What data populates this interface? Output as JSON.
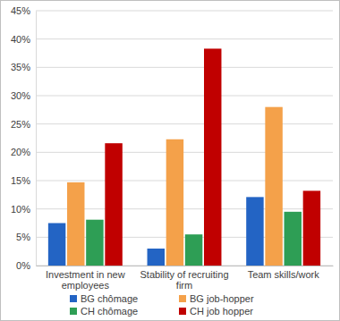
{
  "chart_data": {
    "type": "bar",
    "categories": [
      "Investment in new employees",
      "Stability of recruiting firm",
      "Team skills/work"
    ],
    "series": [
      {
        "name": "BG chômage",
        "color": "#2364C4",
        "values": [
          7.5,
          3.0,
          12.1
        ]
      },
      {
        "name": "BG job-hopper",
        "color": "#F4A14A",
        "values": [
          14.7,
          22.3,
          28.0
        ]
      },
      {
        "name": "CH chômage",
        "color": "#2E9E55",
        "values": [
          8.1,
          5.5,
          9.5
        ]
      },
      {
        "name": "CH job hopper",
        "color": "#C00000",
        "values": [
          21.6,
          38.3,
          13.2
        ]
      }
    ],
    "ylim": [
      0,
      45
    ],
    "yticks": [
      {
        "value": 0,
        "label": "0%"
      },
      {
        "value": 5,
        "label": "5%"
      },
      {
        "value": 10,
        "label": "10%"
      },
      {
        "value": 15,
        "label": "15%"
      },
      {
        "value": 20,
        "label": "20%"
      },
      {
        "value": 25,
        "label": "25%"
      },
      {
        "value": 30,
        "label": "30%"
      },
      {
        "value": 35,
        "label": "35%"
      },
      {
        "value": 40,
        "label": "40%"
      },
      {
        "value": 45,
        "label": "45%"
      }
    ],
    "grid": true,
    "legend": "bottom"
  }
}
